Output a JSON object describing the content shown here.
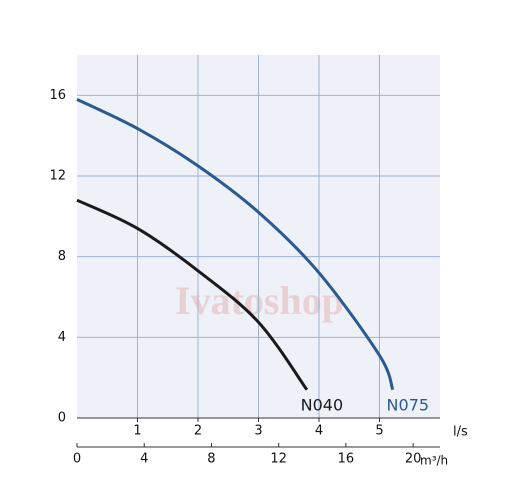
{
  "chart_data": {
    "type": "line",
    "watermark": "Ivatoshop",
    "xlabel": "l/s",
    "x2label": "m³/h",
    "xlim": [
      0,
      6
    ],
    "xticks": [
      1,
      2,
      3,
      4,
      5
    ],
    "x2lim": [
      0,
      21.6
    ],
    "x2ticks": [
      0,
      4,
      8,
      12,
      16,
      20
    ],
    "ylim": [
      0,
      18
    ],
    "yticks": [
      0,
      4,
      8,
      12,
      16
    ],
    "grid": true,
    "series": [
      {
        "name": "N040",
        "color": "#1a1a1a",
        "x": [
          0,
          1,
          2,
          3,
          3.8
        ],
        "values": [
          10.8,
          9.4,
          7.3,
          4.75,
          1.4
        ]
      },
      {
        "name": "N075",
        "color": "#2a5a92",
        "x": [
          0,
          1,
          2,
          3,
          4,
          5,
          5.22
        ],
        "values": [
          15.8,
          14.35,
          12.5,
          10.2,
          7.2,
          3.1,
          1.4
        ]
      }
    ]
  }
}
